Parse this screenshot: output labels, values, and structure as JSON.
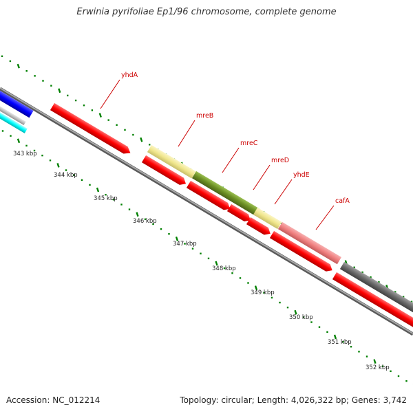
{
  "title": "Erwinia pyrifoliae Ep1/96 chromosome, complete genome",
  "footer": {
    "accession": "Accession: NC_012214",
    "topology": "Topology: circular; Length: 4,026,322 bp; Genes: 3,742"
  },
  "colors": {
    "cds": "#ff0000",
    "label": "#cc0000",
    "tick": "#008000",
    "backbone": "#8a8a8a",
    "blue": "#0000ff",
    "cyan": "#00ffff",
    "olive": "#6b8e23",
    "khaki": "#f0e68c",
    "salmon": "#f08080",
    "dimgray": "#696969"
  },
  "scale_labels": [
    "343 kbp",
    "344 kbp",
    "345 kbp",
    "346 kbp",
    "347 kbp",
    "348 kbp",
    "349 kbp",
    "350 kbp",
    "351 kbp",
    "352 kbp"
  ],
  "gene_labels": [
    "yhdA",
    "mreB",
    "mreC",
    "mreD",
    "yhdE",
    "cafA"
  ]
}
